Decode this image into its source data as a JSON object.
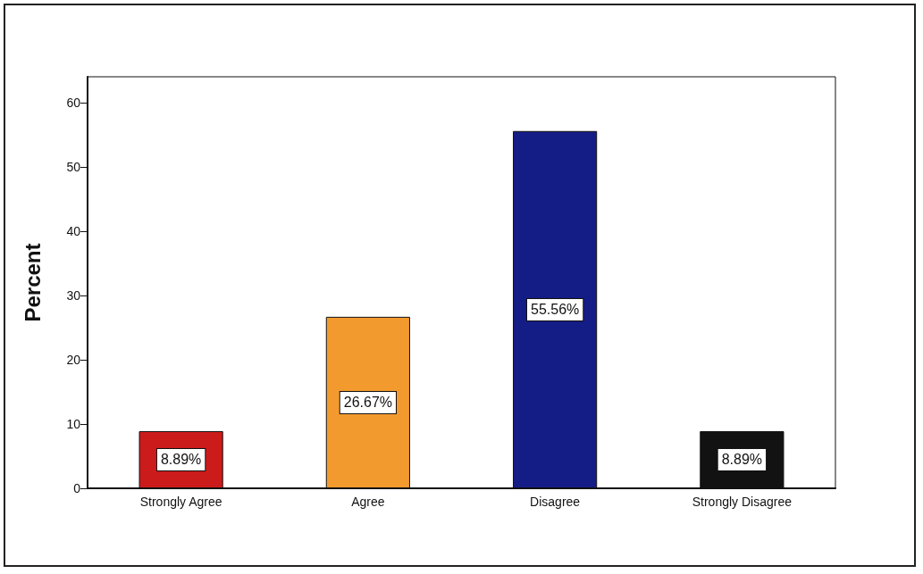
{
  "chart_data": {
    "type": "bar",
    "ylabel": "Percent",
    "categories": [
      "Strongly Agree",
      "Agree",
      "Disagree",
      "Strongly Disagree"
    ],
    "values": [
      8.89,
      26.67,
      55.56,
      8.89
    ],
    "colors": [
      "#cc1b1b",
      "#f39a2e",
      "#141c86",
      "#121212"
    ],
    "value_labels": [
      "8.89%",
      "26.67%",
      "55.56%",
      "8.89%"
    ],
    "ylim": [
      0,
      64
    ],
    "yticks": [
      0,
      10,
      20,
      30,
      40,
      50,
      60
    ],
    "grid": false
  }
}
